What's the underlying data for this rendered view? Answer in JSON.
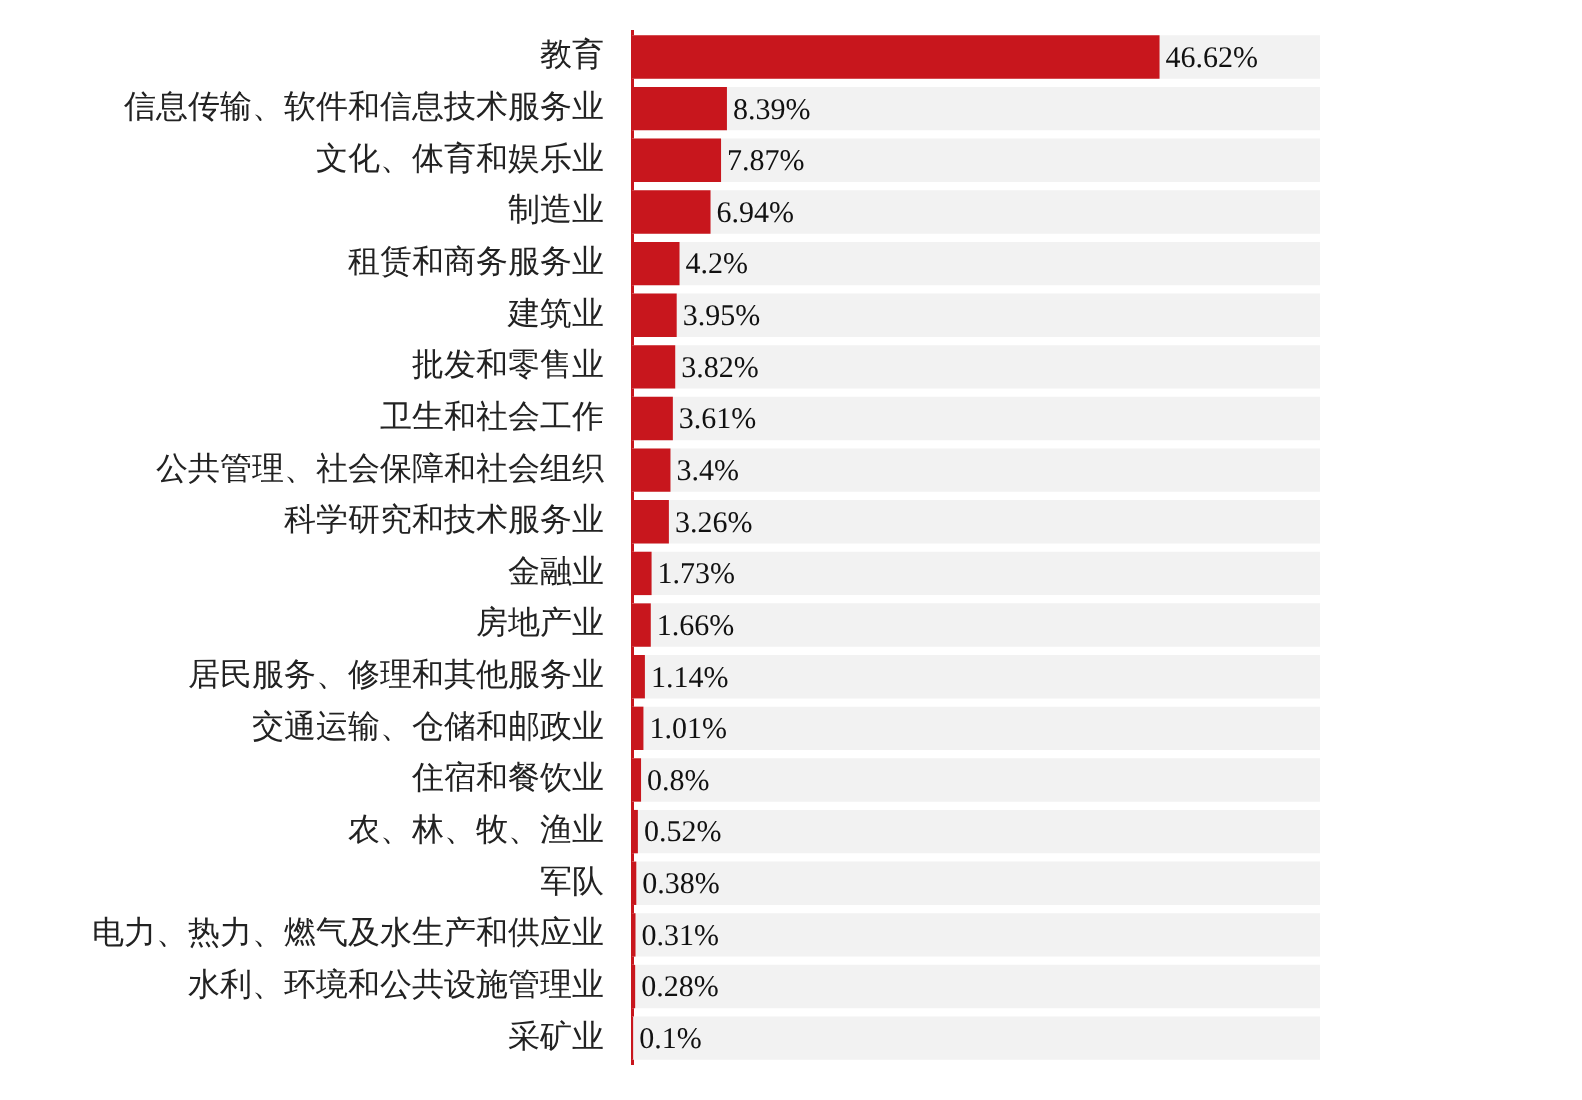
{
  "chart_data": {
    "type": "bar",
    "orientation": "horizontal",
    "categories": [
      "教育",
      "信息传输、软件和信息技术服务业",
      "文化、体育和娱乐业",
      "制造业",
      "租赁和商务服务业",
      "建筑业",
      "批发和零售业",
      "卫生和社会工作",
      "公共管理、社会保障和社会组织",
      "科学研究和技术服务业",
      "金融业",
      "房地产业",
      "居民服务、修理和其他服务业",
      "交通运输、仓储和邮政业",
      "住宿和餐饮业",
      "农、林、牧、渔业",
      "军队",
      "电力、热力、燃气及水生产和供应业",
      "水利、环境和公共设施管理业",
      "采矿业"
    ],
    "values": [
      46.62,
      8.39,
      7.87,
      6.94,
      4.2,
      3.95,
      3.82,
      3.61,
      3.4,
      3.26,
      1.73,
      1.66,
      1.14,
      1.01,
      0.8,
      0.52,
      0.38,
      0.31,
      0.28,
      0.1
    ],
    "value_labels": [
      "46.62%",
      "8.39%",
      "7.87%",
      "6.94%",
      "4.2%",
      "3.95%",
      "3.82%",
      "3.61%",
      "3.4%",
      "3.26%",
      "1.73%",
      "1.66%",
      "1.14%",
      "1.01%",
      "0.8%",
      "0.52%",
      "0.38%",
      "0.31%",
      "0.28%",
      "0.1%"
    ],
    "color": "#c8161d",
    "xlim": [
      0,
      60.8
    ],
    "legend": false,
    "tick_labels": "y"
  }
}
